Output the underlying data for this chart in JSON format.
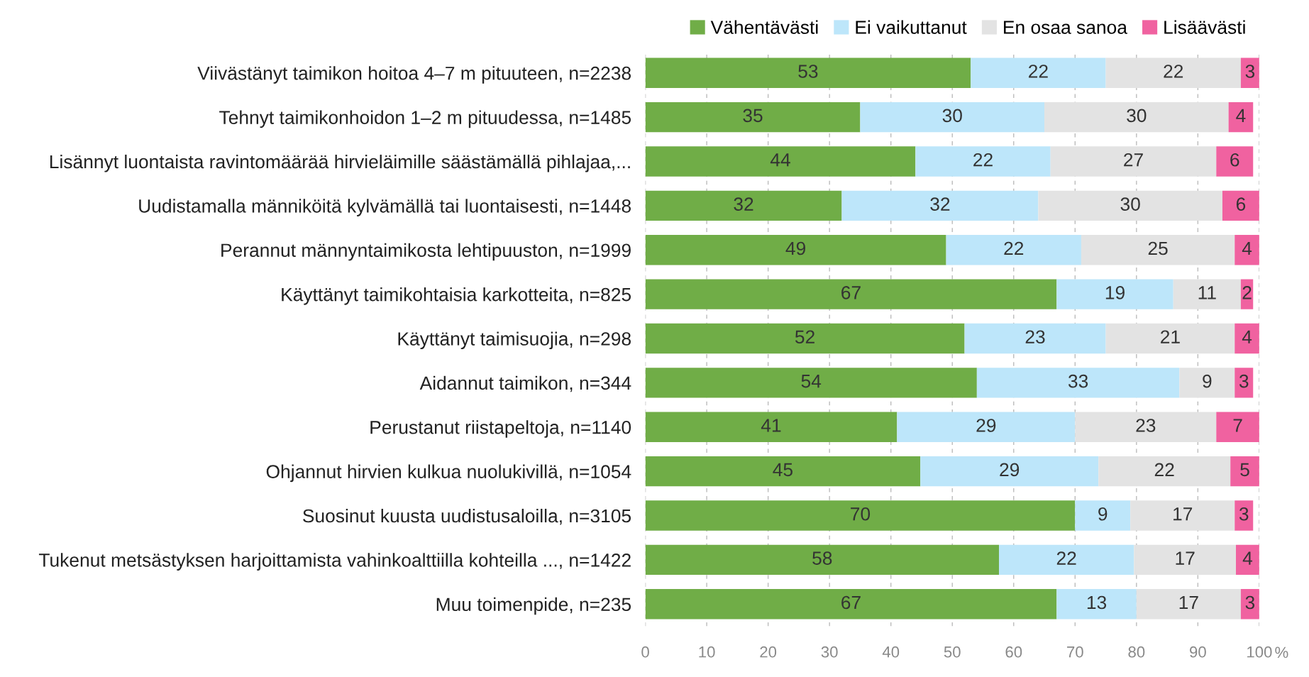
{
  "chart_data": {
    "type": "bar",
    "orientation": "horizontal",
    "stacked": true,
    "grid": "x",
    "legend": "top right",
    "xlabel": "%",
    "categories": [
      "Viivästänyt taimikon hoitoa 4–7 m pituuteen, n=2238",
      "Tehnyt taimikonhoidon 1–2 m pituudessa, n=1485",
      "Lisännyt luontaista ravintomäärää hirvieläimille säästämällä pihlajaa,...",
      "Uudistamalla männiköitä kylvämällä tai luontaisesti, n=1448",
      "Perannut männyntaimikosta lehtipuuston, n=1999",
      "Käyttänyt taimikohtaisia karkotteita, n=825",
      "Käyttänyt taimisuojia, n=298",
      "Aidannut taimikon, n=344",
      "Perustanut riistapeltoja, n=1140",
      "Ohjannut hirvien kulkua nuolukivillä, n=1054",
      "Suosinut kuusta uudistusaloilla, n=3105",
      "Tukenut metsästyksen harjoittamista vahinkoalttiilla kohteilla ..., n=1422",
      "Muu toimenpide, n=235"
    ],
    "series": [
      {
        "name": "Vähentävästi",
        "color": "#70ad47",
        "values": [
          53,
          35,
          44,
          32,
          49,
          67,
          52,
          54,
          41,
          44.8,
          70,
          57.6,
          67
        ],
        "value_labels": [
          "53",
          "35",
          "44",
          "32",
          "49",
          "67",
          "52",
          "54",
          "41",
          "45",
          "70",
          "58",
          "67"
        ]
      },
      {
        "name": "Ei vaikuttanut",
        "color": "#bde6fa",
        "values": [
          22,
          30,
          22,
          32,
          22,
          19,
          23,
          33,
          29,
          29,
          9,
          22,
          13
        ],
        "value_labels": [
          "22",
          "30",
          "22",
          "32",
          "22",
          "19",
          "23",
          "33",
          "29",
          "29",
          "9",
          "22",
          "13"
        ]
      },
      {
        "name": "En osaa sanoa",
        "color": "#e3e3e3",
        "values": [
          22,
          30,
          27,
          30,
          25,
          11,
          21,
          9,
          23,
          21.5,
          17,
          16.6,
          17
        ],
        "value_labels": [
          "22",
          "30",
          "27",
          "30",
          "25",
          "11",
          "21",
          "9",
          "23",
          "22",
          "17",
          "17",
          "17"
        ]
      },
      {
        "name": "Lisäävästi",
        "color": "#f062a0",
        "values": [
          3,
          4,
          6,
          6,
          4,
          2,
          4,
          3,
          7,
          4.7,
          3,
          3.8,
          3
        ],
        "value_labels": [
          "3",
          "4",
          "6",
          "6",
          "4",
          "2",
          "4",
          "3",
          "7",
          "5",
          "3",
          "4",
          "3"
        ]
      }
    ],
    "xlim": [
      0,
      100
    ],
    "xticks": [
      0,
      10,
      20,
      30,
      40,
      50,
      60,
      70,
      80,
      90,
      100
    ]
  }
}
